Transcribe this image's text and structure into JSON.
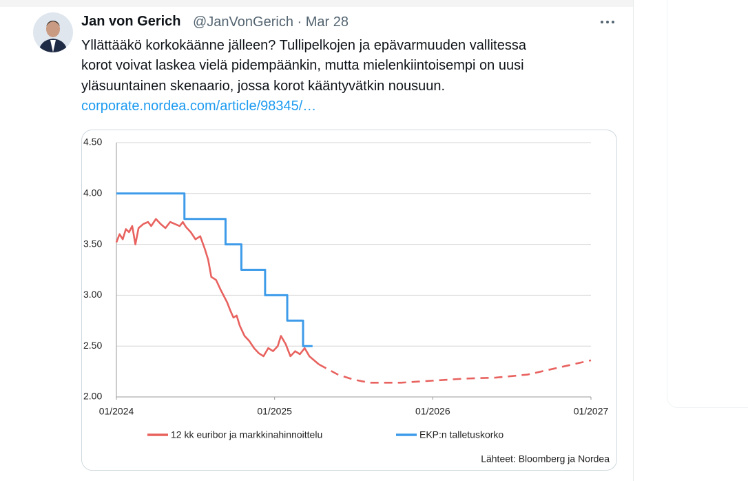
{
  "tweet": {
    "author_name": "Jan von Gerich",
    "handle": "@JanVonGerich",
    "separator": "·",
    "date": "Mar 28",
    "body_lines": [
      "Yllättääkö korkokäänne jälleen? Tullipelkojen ja epävarmuuden vallitessa",
      "korot voivat laskea vielä pidempäänkin, mutta mielenkiintoisempi on uusi",
      "yläsuuntainen skenaario, jossa korot kääntyvätkin nousuun."
    ],
    "link": "corporate.nordea.com/article/98345/…"
  },
  "chart_data": {
    "type": "line",
    "source": "Lähteet: Bloomberg ja Nordea",
    "xlim": [
      2024,
      2027
    ],
    "xticks": [
      {
        "value": 2024,
        "label": "01/2024"
      },
      {
        "value": 2025,
        "label": "01/2025"
      },
      {
        "value": 2026,
        "label": "01/2026"
      },
      {
        "value": 2027,
        "label": "01/2027"
      }
    ],
    "ylim": [
      2,
      4.5
    ],
    "yticks": [
      {
        "value": 2,
        "label": "2.00"
      },
      {
        "value": 2.5,
        "label": "2.50"
      },
      {
        "value": 3,
        "label": "3.00"
      },
      {
        "value": 3.5,
        "label": "3.50"
      },
      {
        "value": 4,
        "label": "4.00"
      },
      {
        "value": 4.5,
        "label": "4.50"
      }
    ],
    "grid": true,
    "series": [
      {
        "name": "12 kk euribor ja markkinahinnoittelu",
        "color": "#e8625f",
        "x": [
          2024.0,
          2024.02,
          2024.04,
          2024.06,
          2024.08,
          2024.1,
          2024.12,
          2024.14,
          2024.17,
          2024.2,
          2024.22,
          2024.25,
          2024.28,
          2024.31,
          2024.34,
          2024.37,
          2024.4,
          2024.42,
          2024.44,
          2024.47,
          2024.5,
          2024.53,
          2024.56,
          2024.58,
          2024.6,
          2024.63,
          2024.66,
          2024.7,
          2024.72,
          2024.74,
          2024.76,
          2024.78,
          2024.81,
          2024.84,
          2024.87,
          2024.9,
          2024.93,
          2024.96,
          2024.99,
          2025.02,
          2025.04,
          2025.07,
          2025.1,
          2025.13,
          2025.16,
          2025.19,
          2025.22,
          2025.25,
          2025.28
        ],
        "values": [
          3.52,
          3.6,
          3.55,
          3.65,
          3.62,
          3.68,
          3.5,
          3.66,
          3.7,
          3.72,
          3.68,
          3.75,
          3.7,
          3.66,
          3.72,
          3.7,
          3.68,
          3.72,
          3.67,
          3.62,
          3.55,
          3.58,
          3.45,
          3.35,
          3.18,
          3.15,
          3.05,
          2.93,
          2.85,
          2.78,
          2.8,
          2.7,
          2.6,
          2.55,
          2.48,
          2.43,
          2.4,
          2.48,
          2.45,
          2.5,
          2.6,
          2.52,
          2.4,
          2.45,
          2.42,
          2.48,
          2.4,
          2.36,
          2.32
        ]
      },
      {
        "color": "#e8625f",
        "dashed": true,
        "x": [
          2025.28,
          2025.4,
          2025.5,
          2025.6,
          2025.8,
          2026.0,
          2026.2,
          2026.4,
          2026.6,
          2026.8,
          2027.0
        ],
        "values": [
          2.32,
          2.22,
          2.17,
          2.14,
          2.14,
          2.16,
          2.18,
          2.19,
          2.22,
          2.29,
          2.36
        ]
      },
      {
        "name": "EKP:n talletuskorko",
        "color": "#3d9be9",
        "step": true,
        "x": [
          2024.0,
          2024.43,
          2024.69,
          2024.79,
          2024.94,
          2025.08,
          2025.18,
          2025.24
        ],
        "values": [
          4.0,
          3.75,
          3.5,
          3.25,
          3.0,
          2.75,
          2.5,
          2.5
        ]
      }
    ]
  }
}
